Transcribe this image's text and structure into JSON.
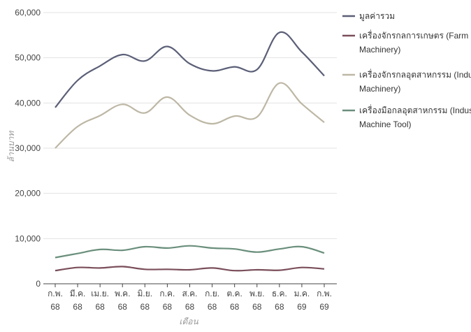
{
  "chart_data": {
    "type": "line",
    "title": "",
    "xlabel": "เดือน",
    "ylabel": "ล้านบาท",
    "ylim": [
      0,
      60000
    ],
    "yticks": [
      "0",
      "10,000",
      "20,000",
      "30,000",
      "40,000",
      "50,000",
      "60,000"
    ],
    "ytick_values": [
      0,
      10000,
      20000,
      30000,
      40000,
      50000,
      60000
    ],
    "grid": true,
    "legend_position": "right",
    "categories": [
      {
        "month": "ก.พ.",
        "year": "68"
      },
      {
        "month": "มี.ค.",
        "year": "68"
      },
      {
        "month": "เม.ย.",
        "year": "68"
      },
      {
        "month": "พ.ค.",
        "year": "68"
      },
      {
        "month": "มิ.ย.",
        "year": "68"
      },
      {
        "month": "ก.ค.",
        "year": "68"
      },
      {
        "month": "ส.ค.",
        "year": "68"
      },
      {
        "month": "ก.ย.",
        "year": "68"
      },
      {
        "month": "ต.ค.",
        "year": "68"
      },
      {
        "month": "พ.ย.",
        "year": "68"
      },
      {
        "month": "ธ.ค.",
        "year": "68"
      },
      {
        "month": "ม.ค.",
        "year": "69"
      },
      {
        "month": "ก.พ.",
        "year": "69"
      }
    ],
    "series": [
      {
        "name": "มูลค่ารวม",
        "color": "#5b5f77",
        "values": [
          39000,
          45000,
          48200,
          50700,
          49300,
          52500,
          48700,
          47100,
          48000,
          47400,
          55600,
          51300,
          46000
        ]
      },
      {
        "name_lines": [
          "เครื่องจักรกลการเกษตร (Farm",
          "Machinery)"
        ],
        "color": "#7a4e5a",
        "values": [
          2900,
          3600,
          3500,
          3800,
          3200,
          3200,
          3100,
          3500,
          2900,
          3100,
          3000,
          3600,
          3300
        ]
      },
      {
        "name_lines": [
          "เครื่องจักรกลอุตสาหกรรม (Industrial",
          "Machinery)"
        ],
        "color": "#bdb7a5",
        "values": [
          30000,
          34800,
          37200,
          39700,
          37800,
          41300,
          37300,
          35400,
          37100,
          36900,
          44400,
          39800,
          35700
        ]
      },
      {
        "name_lines": [
          "เครื่องมือกลอุตสาหกรรม (Industrial",
          "Machine Tool)"
        ],
        "color": "#6a8f7c",
        "values": [
          5800,
          6700,
          7600,
          7400,
          8200,
          7900,
          8400,
          7900,
          7700,
          7000,
          7700,
          8200,
          6800
        ]
      }
    ]
  }
}
